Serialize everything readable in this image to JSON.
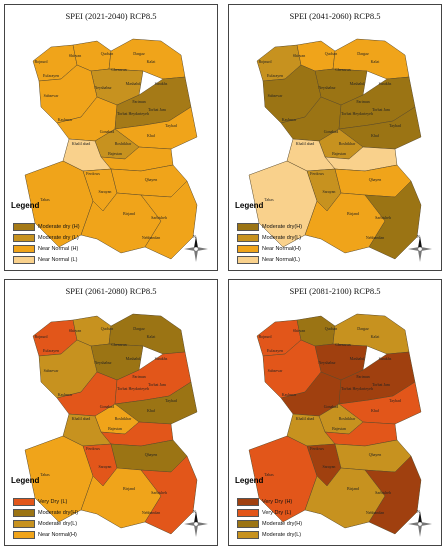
{
  "map_data": {
    "panels": [
      {
        "title": "SPEI (2021-2040)   RCP8.5",
        "legend_title": "Legend",
        "legend": [
          {
            "label": "Moderate dry (H)",
            "color": "#a57a17"
          },
          {
            "label": "Moderate dry  (L)",
            "color": "#c7921f"
          },
          {
            "label": "Near Normal  (H)",
            "color": "#f0a41a"
          },
          {
            "label": "Near Normal   (L)",
            "color": "#f9d18c"
          }
        ],
        "fills": {
          "ne": "#f0a41a",
          "nw": "#f0a41a",
          "n1": "#f0a41a",
          "n2": "#c7921f",
          "c1": "#f0a41a",
          "c2": "#a57a17",
          "c3": "#f0a41a",
          "c4": "#c7921f",
          "c5": "#f0a41a",
          "c6": "#f9d18c",
          "w": "#f0a41a",
          "sw": "#f0a41a",
          "s": "#f0a41a",
          "se": "#f0a41a",
          "e": "#f0a41a",
          "w2": "#f0a41a"
        }
      },
      {
        "title": "SPEI (2041-2060)   RCP8.5",
        "legend_title": "Legend",
        "legend": [
          {
            "label": "Moderate dry(H)",
            "color": "#9b7414"
          },
          {
            "label": "Moderate dry(L)",
            "color": "#c7921f"
          },
          {
            "label": "Near Normal(H)",
            "color": "#f0a41a"
          },
          {
            "label": "Near Normal(L)",
            "color": "#f9d18c"
          }
        ],
        "fills": {
          "ne": "#f0a41a",
          "nw": "#c7921f",
          "n1": "#f0a41a",
          "n2": "#9b7414",
          "c1": "#9b7414",
          "c2": "#9b7414",
          "c3": "#9b7414",
          "c4": "#c7921f",
          "c5": "#f9d18c",
          "c6": "#f9d18c",
          "w": "#f9d18c",
          "sw": "#c7921f",
          "s": "#f0a41a",
          "se": "#9b7414",
          "e": "#f0a41a",
          "w2": "#9b7414"
        }
      },
      {
        "title": "SPEI (2061-2080)   RCP8.5",
        "legend_title": "Legend",
        "legend": [
          {
            "label": "Very Dry (L)",
            "color": "#e2561a"
          },
          {
            "label": "Moderate dry(H)",
            "color": "#9b7414"
          },
          {
            "label": "Moderate dry(L)",
            "color": "#c7921f"
          },
          {
            "label": "Near Normal(H)",
            "color": "#f0a41a"
          }
        ],
        "fills": {
          "ne": "#9b7414",
          "nw": "#e2561a",
          "n1": "#c7921f",
          "n2": "#9b7414",
          "c1": "#e2561a",
          "c2": "#e2561a",
          "c3": "#9b7414",
          "c4": "#f0a41a",
          "c5": "#e2561a",
          "c6": "#c7921f",
          "w": "#f0a41a",
          "sw": "#e2561a",
          "s": "#9b7414",
          "se": "#e2561a",
          "e": "#f0a41a",
          "w2": "#c7921f"
        }
      },
      {
        "title": "SPEI (2081-2100)   RCP8.5",
        "legend_title": "Legend",
        "legend": [
          {
            "label": "Very Dry (H)",
            "color": "#a0400f"
          },
          {
            "label": "Very Dry (L)",
            "color": "#e2561a"
          },
          {
            "label": "Moderate dry(H)",
            "color": "#9b7414"
          },
          {
            "label": "Moderate dry(L)",
            "color": "#c7921f"
          }
        ],
        "fills": {
          "ne": "#c7921f",
          "nw": "#e2561a",
          "n1": "#9b7414",
          "n2": "#a0400f",
          "c1": "#a0400f",
          "c2": "#a0400f",
          "c3": "#e2561a",
          "c4": "#c7921f",
          "c5": "#e2561a",
          "c6": "#c7921f",
          "w": "#e2561a",
          "sw": "#a0400f",
          "s": "#c7921f",
          "se": "#a0400f",
          "e": "#c7921f",
          "w2": "#e2561a"
        }
      }
    ],
    "place_labels": [
      "Bojnurd",
      "Shirvan",
      "Quchan",
      "Dargaz",
      "Kalat",
      "Esfarayen",
      "Chenaran",
      "Sarakhs",
      "Sabzevar",
      "Neyshabur",
      "Mashahd",
      "Fariman",
      "Torbat Jam",
      "Kashmar",
      "Torbat Heydarieyeh",
      "Taybad",
      "Gonabad",
      "Khaf",
      "Bajestan",
      "Ferdows",
      "Tabas",
      "Sarayan",
      "Birjand",
      "Qhayen",
      "Sarbisheh",
      "Nehbandan",
      "Khalil abad",
      "Roshtkhar"
    ],
    "north_arrow_label": "N"
  }
}
